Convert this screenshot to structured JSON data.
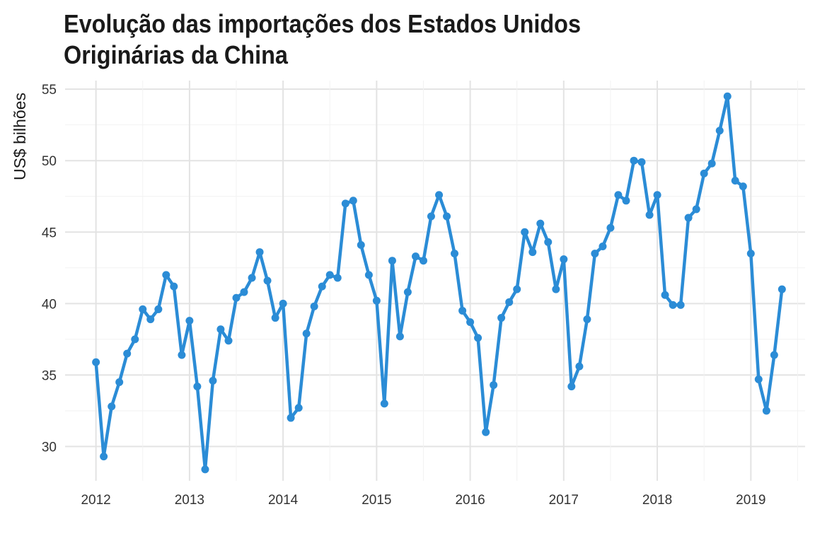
{
  "chart_data": {
    "type": "line",
    "title_lines": [
      "Evolução das importações dos Estados Unidos",
      "Originárias da China"
    ],
    "xlabel": "",
    "ylabel": "US$ bilhões",
    "x_tick_labels": [
      "2012",
      "2013",
      "2014",
      "2015",
      "2016",
      "2017",
      "2018",
      "2019"
    ],
    "y_ticks": [
      30,
      35,
      40,
      45,
      50,
      55
    ],
    "xlim": [
      2011.67,
      2019.58
    ],
    "ylim": [
      27.6,
      55.6
    ],
    "grid": true,
    "legend": "none",
    "color": "#2B8CD6",
    "series": [
      {
        "x": [
          2012.0,
          2012.083,
          2012.167,
          2012.25,
          2012.333,
          2012.417,
          2012.5,
          2012.583,
          2012.667,
          2012.75,
          2012.833,
          2012.917,
          2013.0,
          2013.083,
          2013.167,
          2013.25,
          2013.333,
          2013.417,
          2013.5,
          2013.583,
          2013.667,
          2013.75,
          2013.833,
          2013.917,
          2014.0,
          2014.083,
          2014.167,
          2014.25,
          2014.333,
          2014.417,
          2014.5,
          2014.583,
          2014.667,
          2014.75,
          2014.833,
          2014.917,
          2015.0,
          2015.083,
          2015.167,
          2015.25,
          2015.333,
          2015.417,
          2015.5,
          2015.583,
          2015.667,
          2015.75,
          2015.833,
          2015.917,
          2016.0,
          2016.083,
          2016.167,
          2016.25,
          2016.333,
          2016.417,
          2016.5,
          2016.583,
          2016.667,
          2016.75,
          2016.833,
          2016.917,
          2017.0,
          2017.083,
          2017.167,
          2017.25,
          2017.333,
          2017.417,
          2017.5,
          2017.583,
          2017.667,
          2017.75,
          2017.833,
          2017.917,
          2018.0,
          2018.083,
          2018.167,
          2018.25,
          2018.333,
          2018.417,
          2018.5,
          2018.583,
          2018.667,
          2018.75,
          2018.833,
          2018.917,
          2019.0,
          2019.083,
          2019.167,
          2019.25,
          2019.333
        ],
        "values": [
          35.9,
          29.3,
          32.8,
          34.5,
          36.5,
          37.5,
          39.6,
          38.9,
          39.6,
          42.0,
          41.2,
          36.4,
          38.8,
          34.2,
          28.4,
          34.6,
          38.2,
          37.4,
          40.4,
          40.8,
          41.8,
          43.6,
          41.6,
          39.0,
          40.0,
          32.0,
          32.7,
          37.9,
          39.8,
          41.2,
          42.0,
          41.8,
          47.0,
          47.2,
          44.1,
          42.0,
          40.2,
          33.0,
          43.0,
          37.7,
          40.8,
          43.3,
          43.0,
          46.1,
          47.6,
          46.1,
          43.5,
          39.5,
          38.7,
          37.6,
          31.0,
          34.3,
          39.0,
          40.1,
          41.0,
          45.0,
          43.6,
          45.6,
          44.3,
          41.0,
          43.1,
          34.2,
          35.6,
          38.9,
          43.5,
          44.0,
          45.3,
          47.6,
          47.2,
          50.0,
          49.9,
          46.2,
          47.6,
          40.6,
          39.9,
          39.9,
          46.0,
          46.6,
          49.1,
          49.8,
          52.1,
          54.5,
          48.6,
          48.2,
          43.5,
          34.7,
          32.5,
          36.4,
          41.0
        ]
      }
    ]
  }
}
